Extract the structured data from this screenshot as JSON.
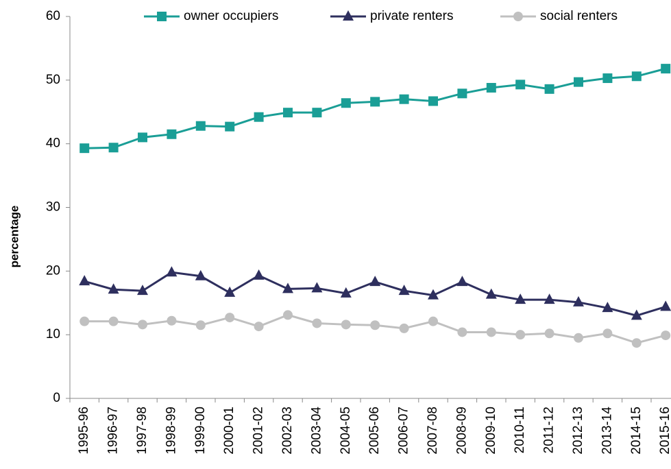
{
  "chart_data": {
    "type": "line",
    "y_label": "percentage",
    "categories": [
      "1995-96",
      "1996-97",
      "1997-98",
      "1998-99",
      "1999-00",
      "2000-01",
      "2001-02",
      "2002-03",
      "2003-04",
      "2004-05",
      "2005-06",
      "2006-07",
      "2007-08",
      "2008-09",
      "2009-10",
      "2010-11",
      "2011-12",
      "2012-13",
      "2013-14",
      "2014-15",
      "2015-16"
    ],
    "series": [
      {
        "name": "owner occupiers",
        "color": "#1a9e96",
        "marker": "square",
        "values": [
          39.3,
          39.4,
          41.0,
          41.5,
          42.8,
          42.7,
          44.2,
          44.9,
          44.9,
          46.4,
          46.6,
          47.0,
          46.7,
          47.9,
          48.8,
          49.3,
          48.6,
          49.7,
          50.3,
          50.6,
          51.8
        ]
      },
      {
        "name": "private renters",
        "color": "#2e2f5e",
        "marker": "triangle",
        "values": [
          18.4,
          17.1,
          16.9,
          19.8,
          19.2,
          16.6,
          19.3,
          17.2,
          17.3,
          16.5,
          18.3,
          16.9,
          16.2,
          18.3,
          16.3,
          15.5,
          15.5,
          15.1,
          14.2,
          13.0,
          14.4
        ]
      },
      {
        "name": "social renters",
        "color": "#c0c0c0",
        "marker": "circle",
        "values": [
          12.1,
          12.1,
          11.6,
          12.2,
          11.5,
          12.7,
          11.3,
          13.1,
          11.8,
          11.6,
          11.5,
          11.0,
          12.1,
          10.4,
          10.4,
          10.0,
          10.2,
          9.5,
          10.2,
          8.7,
          9.9
        ]
      }
    ],
    "ylim": [
      0,
      60
    ],
    "yticks": [
      0,
      10,
      20,
      30,
      40,
      50,
      60
    ],
    "legend": "top"
  }
}
